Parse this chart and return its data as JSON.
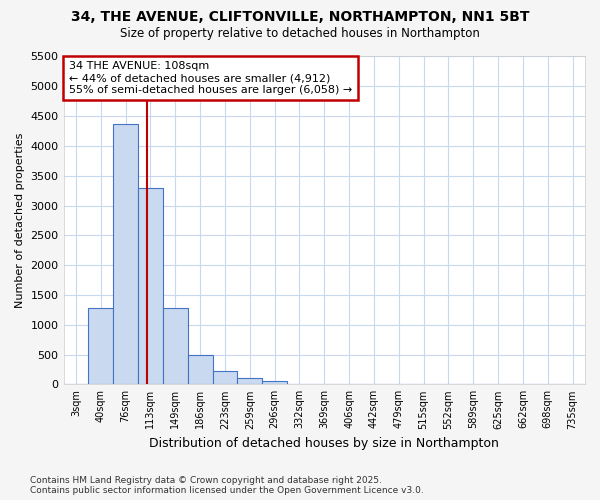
{
  "title1": "34, THE AVENUE, CLIFTONVILLE, NORTHAMPTON, NN1 5BT",
  "title2": "Size of property relative to detached houses in Northampton",
  "xlabel": "Distribution of detached houses by size in Northampton",
  "ylabel": "Number of detached properties",
  "bar_labels": [
    "3sqm",
    "40sqm",
    "76sqm",
    "113sqm",
    "149sqm",
    "186sqm",
    "223sqm",
    "259sqm",
    "296sqm",
    "332sqm",
    "369sqm",
    "406sqm",
    "442sqm",
    "479sqm",
    "515sqm",
    "552sqm",
    "589sqm",
    "625sqm",
    "662sqm",
    "698sqm",
    "735sqm"
  ],
  "bar_values": [
    0,
    1275,
    4375,
    3300,
    1275,
    500,
    225,
    100,
    50,
    0,
    0,
    0,
    0,
    0,
    0,
    0,
    0,
    0,
    0,
    0,
    0
  ],
  "bar_color": "#c9d9f0",
  "bar_edge_color": "#4472c4",
  "ylim": [
    0,
    5500
  ],
  "yticks": [
    0,
    500,
    1000,
    1500,
    2000,
    2500,
    3000,
    3500,
    4000,
    4500,
    5000,
    5500
  ],
  "vline_color": "#c00000",
  "annotation_title": "34 THE AVENUE: 108sqm",
  "annotation_line1": "← 44% of detached houses are smaller (4,912)",
  "annotation_line2": "55% of semi-detached houses are larger (6,058) →",
  "annotation_box_color": "#c00000",
  "plot_bg_color": "#ffffff",
  "fig_bg_color": "#f5f5f5",
  "grid_color": "#c8d8ee",
  "footer1": "Contains HM Land Registry data © Crown copyright and database right 2025.",
  "footer2": "Contains public sector information licensed under the Open Government Licence v3.0."
}
